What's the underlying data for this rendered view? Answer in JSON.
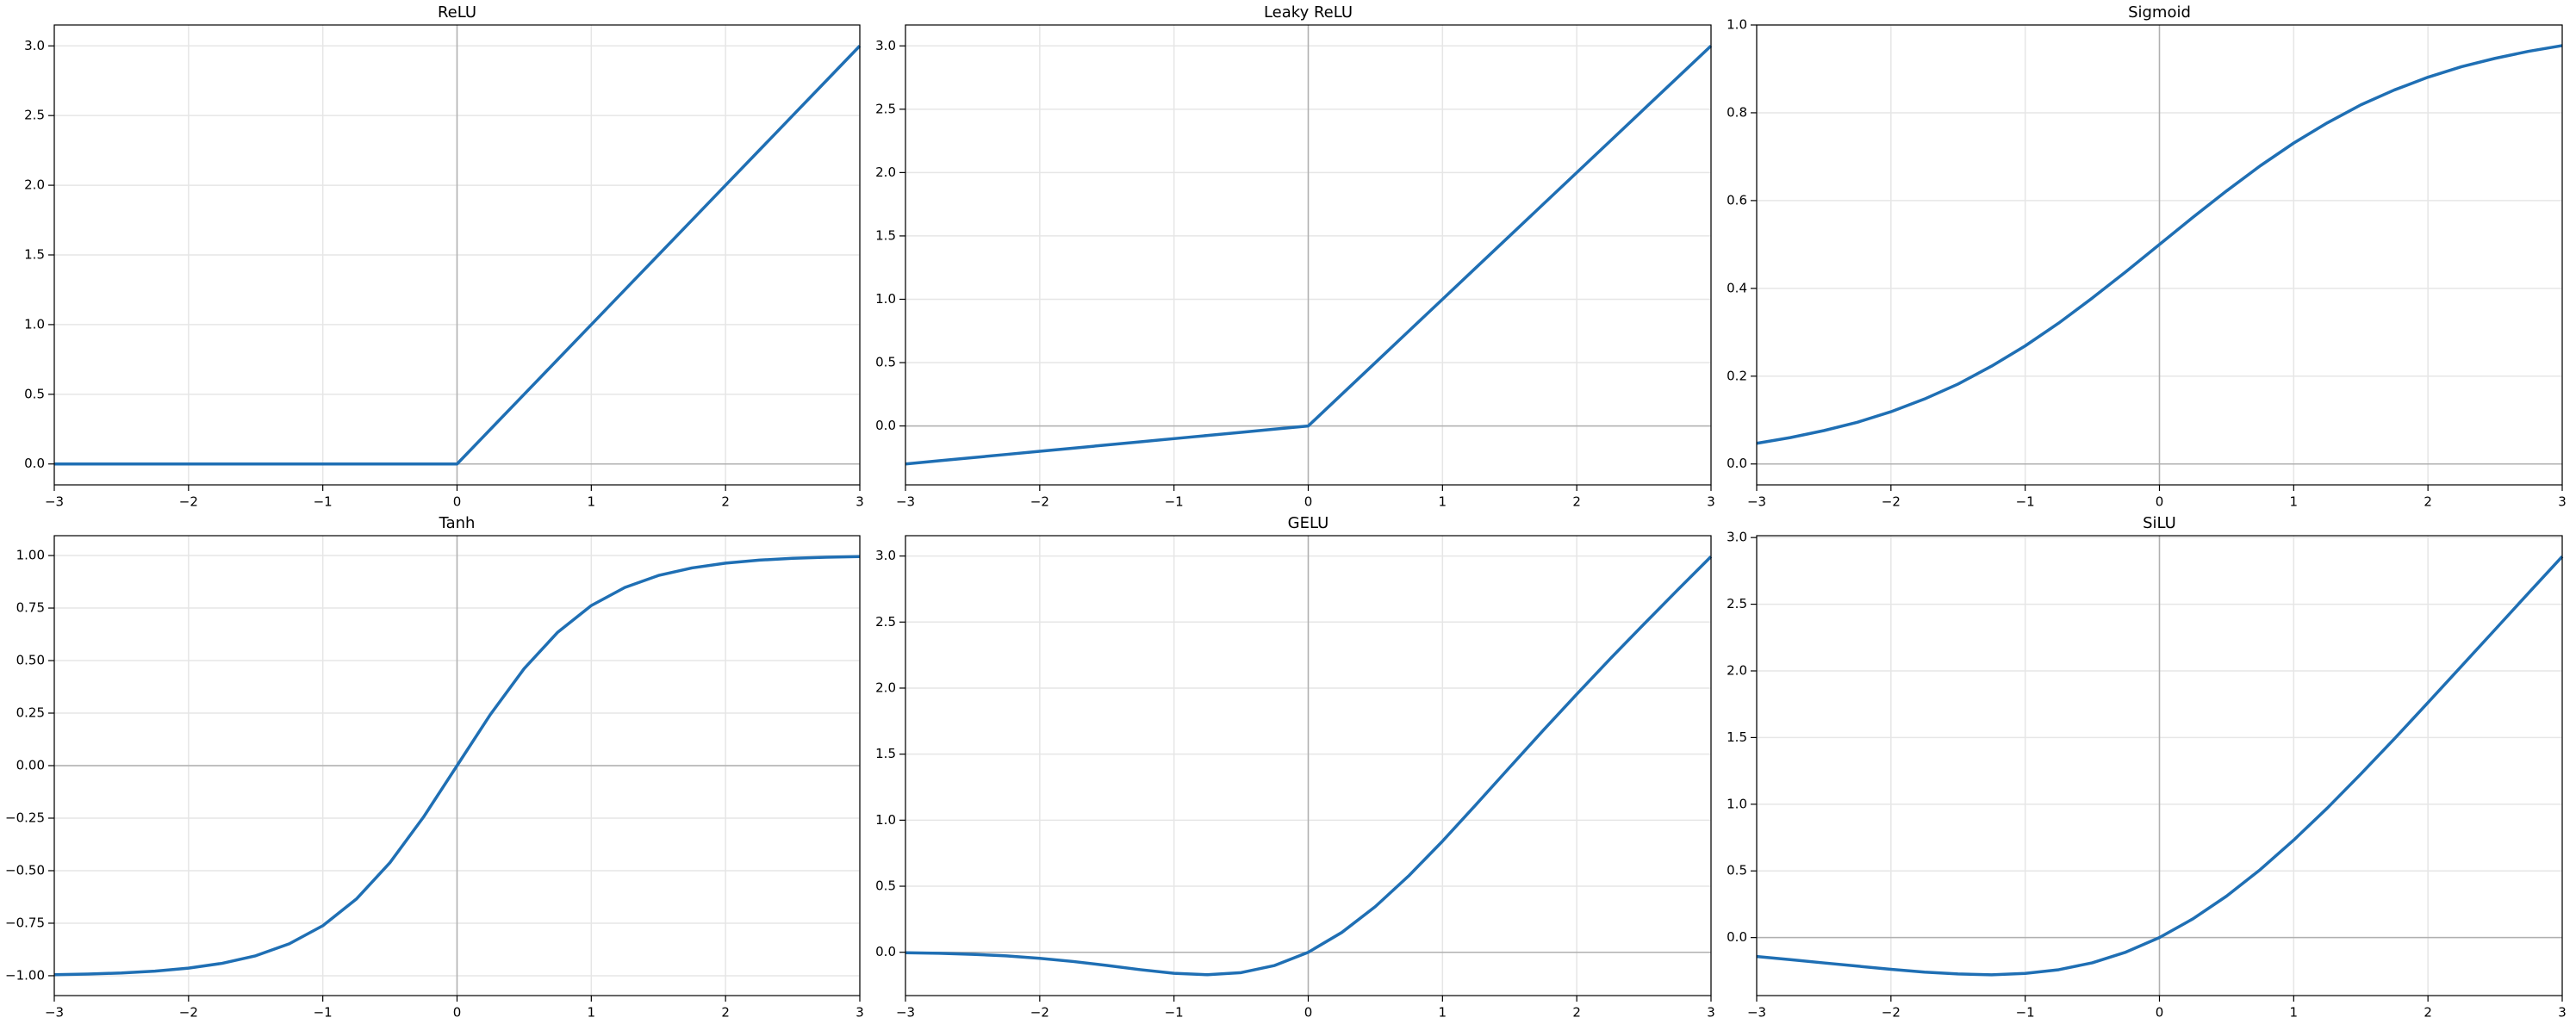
{
  "chart_data": [
    {
      "type": "line",
      "title": "ReLU",
      "color": "#1f6fb4",
      "grid": true,
      "x": [
        -3,
        -2.75,
        -2.5,
        -2.25,
        -2,
        -1.75,
        -1.5,
        -1.25,
        -1,
        -0.75,
        -0.5,
        -0.25,
        0,
        0.25,
        0.5,
        0.75,
        1,
        1.25,
        1.5,
        1.75,
        2,
        2.25,
        2.5,
        2.75,
        3
      ],
      "values": [
        0,
        0,
        0,
        0,
        0,
        0,
        0,
        0,
        0,
        0,
        0,
        0,
        0,
        0.25,
        0.5,
        0.75,
        1,
        1.25,
        1.5,
        1.75,
        2,
        2.25,
        2.5,
        2.75,
        3
      ],
      "xlim": [
        -3,
        3
      ],
      "xticks": [
        {
          "value": -3,
          "label": "−3"
        },
        {
          "value": -2,
          "label": "−2"
        },
        {
          "value": -1,
          "label": "−1"
        },
        0,
        1,
        2,
        3
      ],
      "ylim": [
        -0.15,
        3.15
      ],
      "yticks": [
        {
          "value": 0,
          "label": "0.0"
        },
        0.5,
        {
          "value": 1,
          "label": "1.0"
        },
        1.5,
        {
          "value": 2,
          "label": "2.0"
        },
        2.5,
        {
          "value": 3,
          "label": "3.0"
        }
      ]
    },
    {
      "type": "line",
      "title": "Leaky ReLU",
      "color": "#1f6fb4",
      "grid": true,
      "x": [
        -3,
        -2.75,
        -2.5,
        -2.25,
        -2,
        -1.75,
        -1.5,
        -1.25,
        -1,
        -0.75,
        -0.5,
        -0.25,
        0,
        0.25,
        0.5,
        0.75,
        1,
        1.25,
        1.5,
        1.75,
        2,
        2.25,
        2.5,
        2.75,
        3
      ],
      "values": [
        -0.3,
        -0.275,
        -0.25,
        -0.225,
        -0.2,
        -0.175,
        -0.15,
        -0.125,
        -0.1,
        -0.075,
        -0.05,
        -0.025,
        0,
        0.25,
        0.5,
        0.75,
        1,
        1.25,
        1.5,
        1.75,
        2,
        2.25,
        2.5,
        2.75,
        3
      ],
      "xlim": [
        -3,
        3
      ],
      "xticks": [
        {
          "value": -3,
          "label": "−3"
        },
        {
          "value": -2,
          "label": "−2"
        },
        {
          "value": -1,
          "label": "−1"
        },
        0,
        1,
        2,
        3
      ],
      "ylim": [
        -0.465,
        3.165
      ],
      "yticks": [
        {
          "value": 0,
          "label": "0.0"
        },
        0.5,
        {
          "value": 1,
          "label": "1.0"
        },
        1.5,
        {
          "value": 2,
          "label": "2.0"
        },
        2.5,
        {
          "value": 3,
          "label": "3.0"
        }
      ]
    },
    {
      "type": "line",
      "title": "Sigmoid",
      "color": "#1f6fb4",
      "grid": true,
      "x": [
        -3,
        -2.75,
        -2.5,
        -2.25,
        -2,
        -1.75,
        -1.5,
        -1.25,
        -1,
        -0.75,
        -0.5,
        -0.25,
        0,
        0.25,
        0.5,
        0.75,
        1,
        1.25,
        1.5,
        1.75,
        2,
        2.25,
        2.5,
        2.75,
        3
      ],
      "values": [
        0.047,
        0.06,
        0.076,
        0.095,
        0.119,
        0.148,
        0.182,
        0.223,
        0.269,
        0.321,
        0.378,
        0.438,
        0.5,
        0.562,
        0.622,
        0.679,
        0.731,
        0.777,
        0.818,
        0.852,
        0.881,
        0.905,
        0.924,
        0.94,
        0.953
      ],
      "xlim": [
        -3,
        3
      ],
      "xticks": [
        {
          "value": -3,
          "label": "−3"
        },
        {
          "value": -2,
          "label": "−2"
        },
        {
          "value": -1,
          "label": "−1"
        },
        0,
        1,
        2,
        3
      ],
      "ylim": [
        -0.0476,
        1.0
      ],
      "yticks": [
        {
          "value": 0,
          "label": "0.0"
        },
        0.2,
        0.4,
        0.6,
        0.8,
        {
          "value": 1,
          "label": "1.0"
        }
      ]
    },
    {
      "type": "line",
      "title": "Tanh",
      "color": "#1f6fb4",
      "grid": true,
      "x": [
        -3,
        -2.75,
        -2.5,
        -2.25,
        -2,
        -1.75,
        -1.5,
        -1.25,
        -1,
        -0.75,
        -0.5,
        -0.25,
        0,
        0.25,
        0.5,
        0.75,
        1,
        1.25,
        1.5,
        1.75,
        2,
        2.25,
        2.5,
        2.75,
        3
      ],
      "values": [
        -0.995,
        -0.992,
        -0.987,
        -0.978,
        -0.964,
        -0.941,
        -0.905,
        -0.848,
        -0.762,
        -0.635,
        -0.462,
        -0.245,
        0,
        0.245,
        0.462,
        0.635,
        0.762,
        0.848,
        0.905,
        0.941,
        0.964,
        0.978,
        0.987,
        0.992,
        0.995
      ],
      "xlim": [
        -3,
        3
      ],
      "xticks": [
        {
          "value": -3,
          "label": "−3"
        },
        {
          "value": -2,
          "label": "−2"
        },
        {
          "value": -1,
          "label": "−1"
        },
        0,
        1,
        2,
        3
      ],
      "ylim": [
        -1.0945,
        1.0945
      ],
      "yticks": [
        {
          "value": -1,
          "label": "−1.00"
        },
        {
          "value": -0.75,
          "label": "−0.75"
        },
        {
          "value": -0.5,
          "label": "−0.50"
        },
        {
          "value": -0.25,
          "label": "−0.25"
        },
        {
          "value": 0,
          "label": "0.00"
        },
        0.25,
        {
          "value": 0.5,
          "label": "0.50"
        },
        0.75,
        {
          "value": 1,
          "label": "1.00"
        }
      ]
    },
    {
      "type": "line",
      "title": "GELU",
      "color": "#1f6fb4",
      "grid": true,
      "x": [
        -3,
        -2.75,
        -2.5,
        -2.25,
        -2,
        -1.75,
        -1.5,
        -1.25,
        -1,
        -0.75,
        -0.5,
        -0.25,
        0,
        0.25,
        0.5,
        0.75,
        1,
        1.25,
        1.5,
        1.75,
        2,
        2.25,
        2.5,
        2.75,
        3
      ],
      "values": [
        -0.004,
        -0.008,
        -0.016,
        -0.027,
        -0.046,
        -0.07,
        -0.1,
        -0.132,
        -0.159,
        -0.17,
        -0.154,
        -0.1,
        0,
        0.15,
        0.346,
        0.58,
        0.841,
        1.118,
        1.4,
        1.68,
        1.954,
        2.223,
        2.484,
        2.742,
        2.996
      ],
      "xlim": [
        -3,
        3
      ],
      "xticks": [
        {
          "value": -3,
          "label": "−3"
        },
        {
          "value": -2,
          "label": "−2"
        },
        {
          "value": -1,
          "label": "−1"
        },
        0,
        1,
        2,
        3
      ],
      "ylim": [
        -0.328,
        3.154
      ],
      "yticks": [
        {
          "value": 0,
          "label": "0.0"
        },
        0.5,
        {
          "value": 1,
          "label": "1.0"
        },
        1.5,
        {
          "value": 2,
          "label": "2.0"
        },
        2.5,
        {
          "value": 3,
          "label": "3.0"
        }
      ]
    },
    {
      "type": "line",
      "title": "SiLU",
      "color": "#1f6fb4",
      "grid": true,
      "x": [
        -3,
        -2.75,
        -2.5,
        -2.25,
        -2,
        -1.75,
        -1.5,
        -1.25,
        -1,
        -0.75,
        -0.5,
        -0.25,
        0,
        0.25,
        0.5,
        0.75,
        1,
        1.25,
        1.5,
        1.75,
        2,
        2.25,
        2.5,
        2.75,
        3
      ],
      "values": [
        -0.142,
        -0.165,
        -0.19,
        -0.214,
        -0.238,
        -0.259,
        -0.273,
        -0.279,
        -0.269,
        -0.241,
        -0.189,
        -0.109,
        0,
        0.141,
        0.311,
        0.509,
        0.731,
        0.971,
        1.227,
        1.491,
        1.762,
        2.036,
        2.31,
        2.585,
        2.858
      ],
      "xlim": [
        -3,
        3
      ],
      "xticks": [
        {
          "value": -3,
          "label": "−3"
        },
        {
          "value": -2,
          "label": "−2"
        },
        {
          "value": -1,
          "label": "−1"
        },
        0,
        1,
        2,
        3
      ],
      "ylim": [
        -0.435,
        3.014
      ],
      "yticks": [
        {
          "value": 0,
          "label": "0.0"
        },
        0.5,
        {
          "value": 1,
          "label": "1.0"
        },
        1.5,
        {
          "value": 2,
          "label": "2.0"
        },
        2.5,
        {
          "value": 3,
          "label": "3.0"
        }
      ]
    }
  ]
}
